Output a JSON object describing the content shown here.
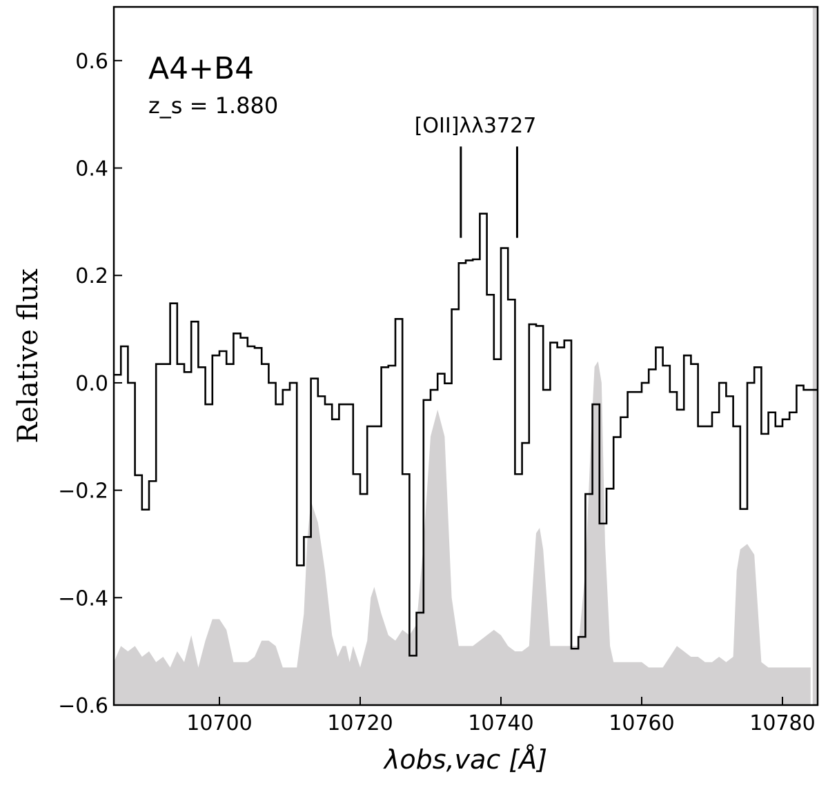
{
  "chart_data": {
    "type": "line",
    "title": "A4+B4",
    "subtitle": "z_s = 1.880",
    "xlabel": "λobs,vac [Å]",
    "ylabel": "Relative flux",
    "xlim": [
      10685,
      10785
    ],
    "ylim": [
      -0.6,
      0.7
    ],
    "x_ticks": [
      10700,
      10720,
      10740,
      10760,
      10780
    ],
    "x_tick_labels": [
      "10700",
      "10720",
      "10740",
      "10760",
      "10780"
    ],
    "y_ticks": [
      -0.6,
      -0.4,
      -0.2,
      0.0,
      0.2,
      0.4,
      0.6
    ],
    "y_tick_labels": [
      "−0.6",
      "−0.4",
      "−0.2",
      "0.0",
      "0.2",
      "0.4",
      "0.6"
    ],
    "grid": false,
    "colors": {
      "spectrum": "#000000",
      "sky": "#d3d1d2"
    },
    "line_label": "[OII]λλ3727",
    "line_markers": [
      10734.3,
      10742.3
    ],
    "line_marker_range": [
      0.27,
      0.44
    ],
    "sky_band_x_range": [
      10784.3,
      10785
    ],
    "spectrum": {
      "name": "",
      "start_x": 10685,
      "step": 1.0,
      "values": [
        0.015,
        0.068,
        0.0,
        -0.172,
        -0.236,
        -0.183,
        0.035,
        0.035,
        0.148,
        0.035,
        0.02,
        0.114,
        0.029,
        -0.04,
        0.051,
        0.059,
        0.035,
        0.092,
        0.084,
        0.068,
        0.065,
        0.035,
        0.0,
        -0.04,
        -0.013,
        0.0,
        -0.34,
        -0.287,
        0.008,
        -0.025,
        -0.04,
        -0.068,
        -0.04,
        -0.04,
        -0.17,
        -0.207,
        -0.081,
        -0.081,
        0.029,
        0.032,
        0.119,
        -0.17,
        -0.508,
        -0.428,
        -0.032,
        -0.013,
        0.017,
        -0.001,
        0.137,
        0.223,
        0.228,
        0.23,
        0.315,
        0.164,
        0.044,
        0.251,
        0.155,
        -0.17,
        -0.112,
        0.109,
        0.106,
        -0.013,
        0.075,
        0.066,
        0.079,
        -0.495,
        -0.473,
        -0.207,
        -0.04,
        -0.262,
        -0.197,
        -0.101,
        -0.064,
        -0.017,
        -0.017,
        0.0,
        0.025,
        0.066,
        0.032,
        -0.017,
        -0.05,
        0.051,
        0.035,
        -0.081,
        -0.081,
        -0.055,
        0.0,
        -0.025,
        -0.081,
        -0.235,
        0.0,
        0.029,
        -0.095,
        -0.055,
        -0.081,
        -0.068,
        -0.055,
        -0.005,
        -0.013,
        -0.013
      ]
    },
    "sky": {
      "name": "",
      "baseline": -0.6,
      "x": [
        10685,
        10686,
        10687,
        10688,
        10689,
        10690,
        10691,
        10692,
        10693,
        10694,
        10695,
        10696,
        10697,
        10698,
        10699,
        10700,
        10701,
        10702,
        10703,
        10704,
        10705,
        10706,
        10707,
        10708,
        10709,
        10710,
        10711,
        10712,
        10712.5,
        10713,
        10714,
        10715,
        10716,
        10716.8,
        10717.5,
        10718,
        10718.5,
        10719,
        10720,
        10721,
        10721.5,
        10722,
        10723,
        10724,
        10725,
        10726,
        10727,
        10728,
        10729,
        10730,
        10731,
        10732,
        10733,
        10734,
        10735,
        10736,
        10737,
        10738,
        10739,
        10740,
        10741,
        10742,
        10743,
        10744,
        10744.5,
        10745,
        10745.5,
        10746,
        10747,
        10748,
        10749,
        10750,
        10751,
        10752,
        10752.8,
        10753.3,
        10753.8,
        10754.3,
        10754.8,
        10755.5,
        10756,
        10757,
        10758,
        10759,
        10760,
        10761,
        10762,
        10763,
        10764,
        10765,
        10766,
        10767,
        10768,
        10769,
        10770,
        10771,
        10772,
        10773,
        10773.5,
        10774,
        10775,
        10776,
        10777,
        10778,
        10779,
        10780,
        10781,
        10782,
        10783,
        10784
      ],
      "y": [
        -0.52,
        -0.49,
        -0.5,
        -0.49,
        -0.51,
        -0.5,
        -0.52,
        -0.51,
        -0.53,
        -0.5,
        -0.52,
        -0.47,
        -0.53,
        -0.48,
        -0.44,
        -0.44,
        -0.46,
        -0.52,
        -0.52,
        -0.52,
        -0.51,
        -0.48,
        -0.48,
        -0.49,
        -0.53,
        -0.53,
        -0.53,
        -0.43,
        -0.29,
        -0.22,
        -0.26,
        -0.35,
        -0.47,
        -0.51,
        -0.49,
        -0.49,
        -0.52,
        -0.49,
        -0.53,
        -0.48,
        -0.4,
        -0.38,
        -0.43,
        -0.47,
        -0.48,
        -0.46,
        -0.47,
        -0.45,
        -0.3,
        -0.1,
        -0.05,
        -0.1,
        -0.4,
        -0.49,
        -0.49,
        -0.49,
        -0.48,
        -0.47,
        -0.46,
        -0.47,
        -0.49,
        -0.5,
        -0.5,
        -0.49,
        -0.38,
        -0.28,
        -0.27,
        -0.31,
        -0.49,
        -0.49,
        -0.49,
        -0.49,
        -0.49,
        -0.35,
        -0.1,
        0.03,
        0.04,
        0.0,
        -0.3,
        -0.49,
        -0.52,
        -0.52,
        -0.52,
        -0.52,
        -0.52,
        -0.53,
        -0.53,
        -0.53,
        -0.51,
        -0.49,
        -0.5,
        -0.51,
        -0.51,
        -0.52,
        -0.52,
        -0.51,
        -0.52,
        -0.51,
        -0.35,
        -0.31,
        -0.3,
        -0.32,
        -0.52,
        -0.53,
        -0.53,
        -0.53,
        -0.53,
        -0.53,
        -0.53,
        -0.53
      ]
    }
  }
}
